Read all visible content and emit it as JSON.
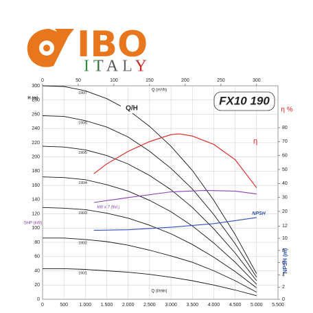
{
  "logo": {
    "brand": "IBO",
    "country": "ITALY"
  },
  "chart_data": {
    "type": "line",
    "title": "FX10 190",
    "subtitle": "Q/H",
    "x_label": "Q (l/min)",
    "x2_label": "Q (m³/h)",
    "y_label": "H (m)",
    "y_label_2": "SHP (kW)",
    "y2_label": "η %",
    "y3_label": "NPSH (m)",
    "grid": true,
    "xlim": [
      0,
      5500
    ],
    "xticks": [
      0,
      500,
      {
        "value": 1000,
        "label": "1.000"
      },
      {
        "value": 1500,
        "label": "1.500"
      },
      {
        "value": 2000,
        "label": "2.000"
      },
      {
        "value": 2500,
        "label": "2.500"
      },
      {
        "value": 3000,
        "label": "3.000"
      },
      {
        "value": 3500,
        "label": "3.500"
      },
      {
        "value": 4000,
        "label": "4.000"
      },
      {
        "value": 4500,
        "label": "4.500"
      },
      {
        "value": 5000,
        "label": "5.000"
      },
      {
        "value": 5500,
        "label": "5.500"
      }
    ],
    "x2lim": [
      0,
      330
    ],
    "x2ticks": [
      0,
      50,
      100,
      150,
      200,
      250,
      300
    ],
    "ylim": [
      0,
      300
    ],
    "yticks": [
      0,
      20,
      40,
      60,
      80,
      100,
      120,
      140,
      160,
      180,
      200,
      220,
      240,
      260,
      280,
      300
    ],
    "y2lim": [
      -43,
      110
    ],
    "y2ticks": [
      20,
      30,
      40,
      50,
      60,
      70,
      80
    ],
    "y3lim": [
      0,
      35
    ],
    "y3ticks": [
      0,
      2,
      4,
      6,
      8,
      10,
      12
    ],
    "series": [
      {
        "name": "190/7",
        "color": "#111111",
        "axis": "y",
        "x": [
          0,
          500,
          1000,
          1500,
          2000,
          2500,
          3000,
          3500,
          4000,
          4500,
          5000
        ],
        "values": [
          300,
          299,
          293,
          282,
          266,
          243,
          215,
          181,
          139,
          91,
          36
        ]
      },
      {
        "name": "190/6",
        "color": "#111111",
        "axis": "y",
        "x": [
          0,
          500,
          1000,
          1500,
          2000,
          2500,
          3000,
          3500,
          4000,
          4500,
          5000
        ],
        "values": [
          258,
          257,
          251,
          242,
          228,
          208,
          184,
          155,
          119,
          78,
          31
        ]
      },
      {
        "name": "190/5",
        "color": "#111111",
        "axis": "y",
        "x": [
          0,
          500,
          1000,
          1500,
          2000,
          2500,
          3000,
          3500,
          4000,
          4500,
          5000
        ],
        "values": [
          215,
          214,
          210,
          202,
          190,
          174,
          154,
          129,
          99,
          65,
          26
        ]
      },
      {
        "name": "190/4",
        "color": "#111111",
        "axis": "y",
        "x": [
          0,
          500,
          1000,
          1500,
          2000,
          2500,
          3000,
          3500,
          4000,
          4500,
          5000
        ],
        "values": [
          172,
          171,
          168,
          161,
          152,
          139,
          123,
          103,
          79,
          52,
          21
        ]
      },
      {
        "name": "190/3",
        "color": "#111111",
        "axis": "y",
        "x": [
          0,
          500,
          1000,
          1500,
          2000,
          2500,
          3000,
          3500,
          4000,
          4500,
          5000
        ],
        "values": [
          129,
          128,
          126,
          121,
          114,
          104,
          92,
          77,
          59,
          39,
          16
        ]
      },
      {
        "name": "190/2",
        "color": "#111111",
        "axis": "y",
        "x": [
          0,
          500,
          1000,
          1500,
          2000,
          2500,
          3000,
          3500,
          4000,
          4500,
          5000
        ],
        "values": [
          86,
          86,
          84,
          81,
          76,
          69,
          61,
          52,
          40,
          26,
          10
        ]
      },
      {
        "name": "190/1",
        "color": "#111111",
        "axis": "y",
        "x": [
          0,
          500,
          1000,
          1500,
          2000,
          2500,
          3000,
          3500,
          4000,
          4500,
          5000
        ],
        "values": [
          43,
          43,
          42,
          40,
          38,
          35,
          31,
          26,
          20,
          13,
          5
        ]
      },
      {
        "name": "η",
        "color": "#e0201c",
        "axis": "y2",
        "x": [
          1200,
          1500,
          2000,
          2500,
          3000,
          3200,
          3500,
          4000,
          4500,
          5000
        ],
        "values": [
          47,
          54,
          63,
          70,
          75,
          75.5,
          74,
          68,
          57,
          37
        ]
      },
      {
        "name": "kW x 7 (fixl.)",
        "color": "#8a3fb5",
        "axis": "y",
        "x": [
          1200,
          2000,
          3000,
          3800,
          4500,
          5000
        ],
        "values": [
          136,
          143,
          151,
          153,
          152,
          148
        ]
      },
      {
        "name": "NPSH",
        "color": "#2f4fb8",
        "axis": "y3",
        "x": [
          1200,
          2000,
          3000,
          4000,
          4500,
          5000
        ],
        "values": [
          11.3,
          11.4,
          11.8,
          12.4,
          12.9,
          13.4
        ]
      }
    ]
  }
}
